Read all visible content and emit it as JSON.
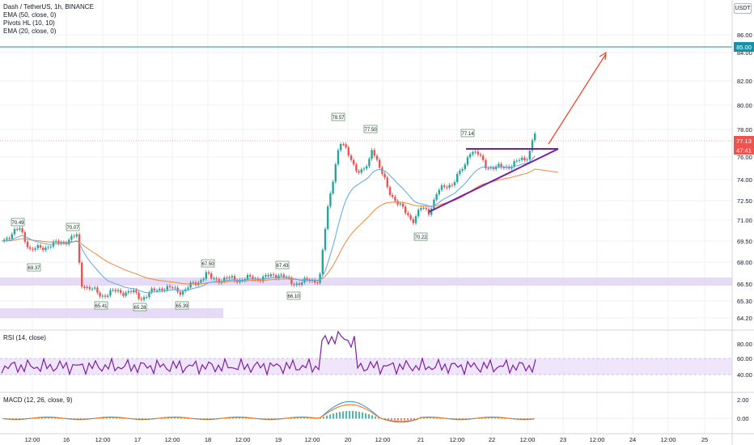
{
  "symbol_title": "Dash / TetherUS, 1h, BINANCE",
  "indicators": [
    "EMA (50, close, 0)",
    "Pivots HL (10, 10)",
    "EMA (20, close, 0)"
  ],
  "currency": "USDT",
  "colors": {
    "up": "#26a69a",
    "down": "#ef5350",
    "ema20": "#5aa9e6",
    "ema50": "#f0873c",
    "rsi": "#7b1fa2",
    "pattern": "#7b1fa2",
    "arrow": "#f23c1e",
    "level": "#1493a8",
    "zone": "#e1d5f5",
    "grid": "#eef0f4"
  },
  "price_axis": {
    "ticks": [
      "86.00",
      "84.00",
      "82.00",
      "80.00",
      "78.00",
      "76.00",
      "74.00",
      "72.50",
      "71.00",
      "69.50",
      "68.00",
      "66.50",
      "65.30",
      "64.20"
    ]
  },
  "price_labels": {
    "level": "85.00",
    "last": "77.13",
    "countdown": "47:41"
  },
  "time_axis": [
    "12:00",
    "16",
    "12:00",
    "17",
    "12:00",
    "18",
    "12:00",
    "19",
    "12:00",
    "20",
    "12:00",
    "21",
    "12:00",
    "22",
    "12:00",
    "23",
    "12:00",
    "24",
    "12:00",
    "25"
  ],
  "pivots": [
    {
      "label": "70.49",
      "kind": "high"
    },
    {
      "label": "69.37",
      "kind": "low"
    },
    {
      "label": "70.07",
      "kind": "high"
    },
    {
      "label": "65.41",
      "kind": "low"
    },
    {
      "label": "65.28",
      "kind": "low"
    },
    {
      "label": "65.39",
      "kind": "low"
    },
    {
      "label": "67.50",
      "kind": "high"
    },
    {
      "label": "67.43",
      "kind": "high"
    },
    {
      "label": "66.10",
      "kind": "low"
    },
    {
      "label": "78.57",
      "kind": "high"
    },
    {
      "label": "77.50",
      "kind": "high"
    },
    {
      "label": "77.14",
      "kind": "high"
    },
    {
      "label": "70.22",
      "kind": "low"
    }
  ],
  "rsi": {
    "title": "RSI (14, close)",
    "ticks": [
      "80.00",
      "60.00",
      "40.00"
    ]
  },
  "macd": {
    "title": "MACD (12, 26, close, 9)",
    "ticks": [
      "2.00",
      "0.00"
    ]
  }
}
